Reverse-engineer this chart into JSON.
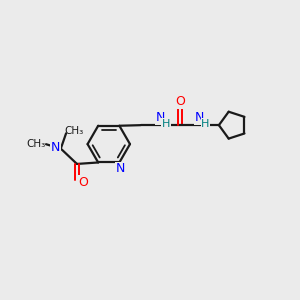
{
  "background_color": "#ebebeb",
  "bond_color": "#1a1a1a",
  "N_color": "#0000ff",
  "O_color": "#ff0000",
  "NH_color": "#008080",
  "figsize": [
    3.0,
    3.0
  ],
  "dpi": 100,
  "xlim": [
    0,
    10
  ],
  "ylim": [
    0,
    10
  ],
  "bond_lw": 1.6,
  "font_size": 8.5,
  "ring_r": 0.72,
  "cp_r": 0.48
}
